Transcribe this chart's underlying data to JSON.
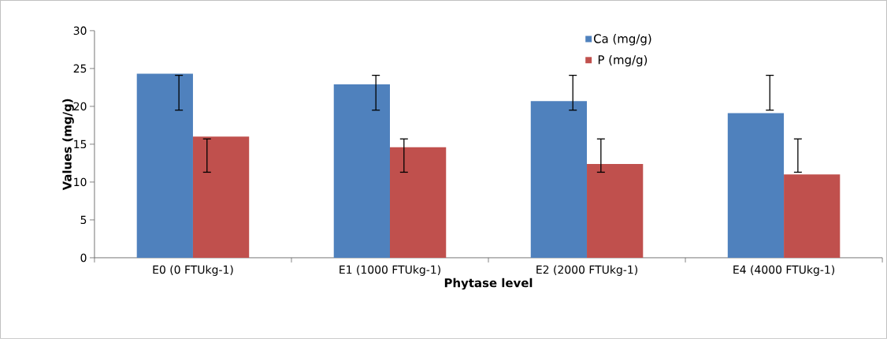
{
  "chart_data": {
    "type": "bar",
    "xlabel": "Phytase level",
    "ylabel": "Values (mg/g)",
    "categories": [
      "E0 (0 FTUkg-1)",
      "E1 (1000 FTUkg-1)",
      "E2 (2000 FTUkg-1)",
      "E4 (4000 FTUkg-1)"
    ],
    "series": [
      {
        "name": "Ca (mg/g)",
        "color": "#4f81bd",
        "values": [
          24.3,
          22.9,
          20.7,
          19.1
        ],
        "errors": [
          [
            19.5,
            24.1
          ],
          [
            19.5,
            24.1
          ],
          [
            19.5,
            24.1
          ],
          [
            19.5,
            24.1
          ]
        ]
      },
      {
        "name": "P (mg/g)",
        "color": "#c0504d",
        "values": [
          16.0,
          14.6,
          12.4,
          11.0
        ],
        "errors": [
          [
            11.3,
            15.7
          ],
          [
            11.3,
            15.7
          ],
          [
            11.3,
            15.7
          ],
          [
            11.3,
            15.7
          ]
        ]
      }
    ],
    "ylim": [
      0,
      30
    ],
    "yticks": [
      0,
      5,
      10,
      15,
      20,
      25,
      30
    ],
    "grid": false,
    "legend": "top right"
  }
}
